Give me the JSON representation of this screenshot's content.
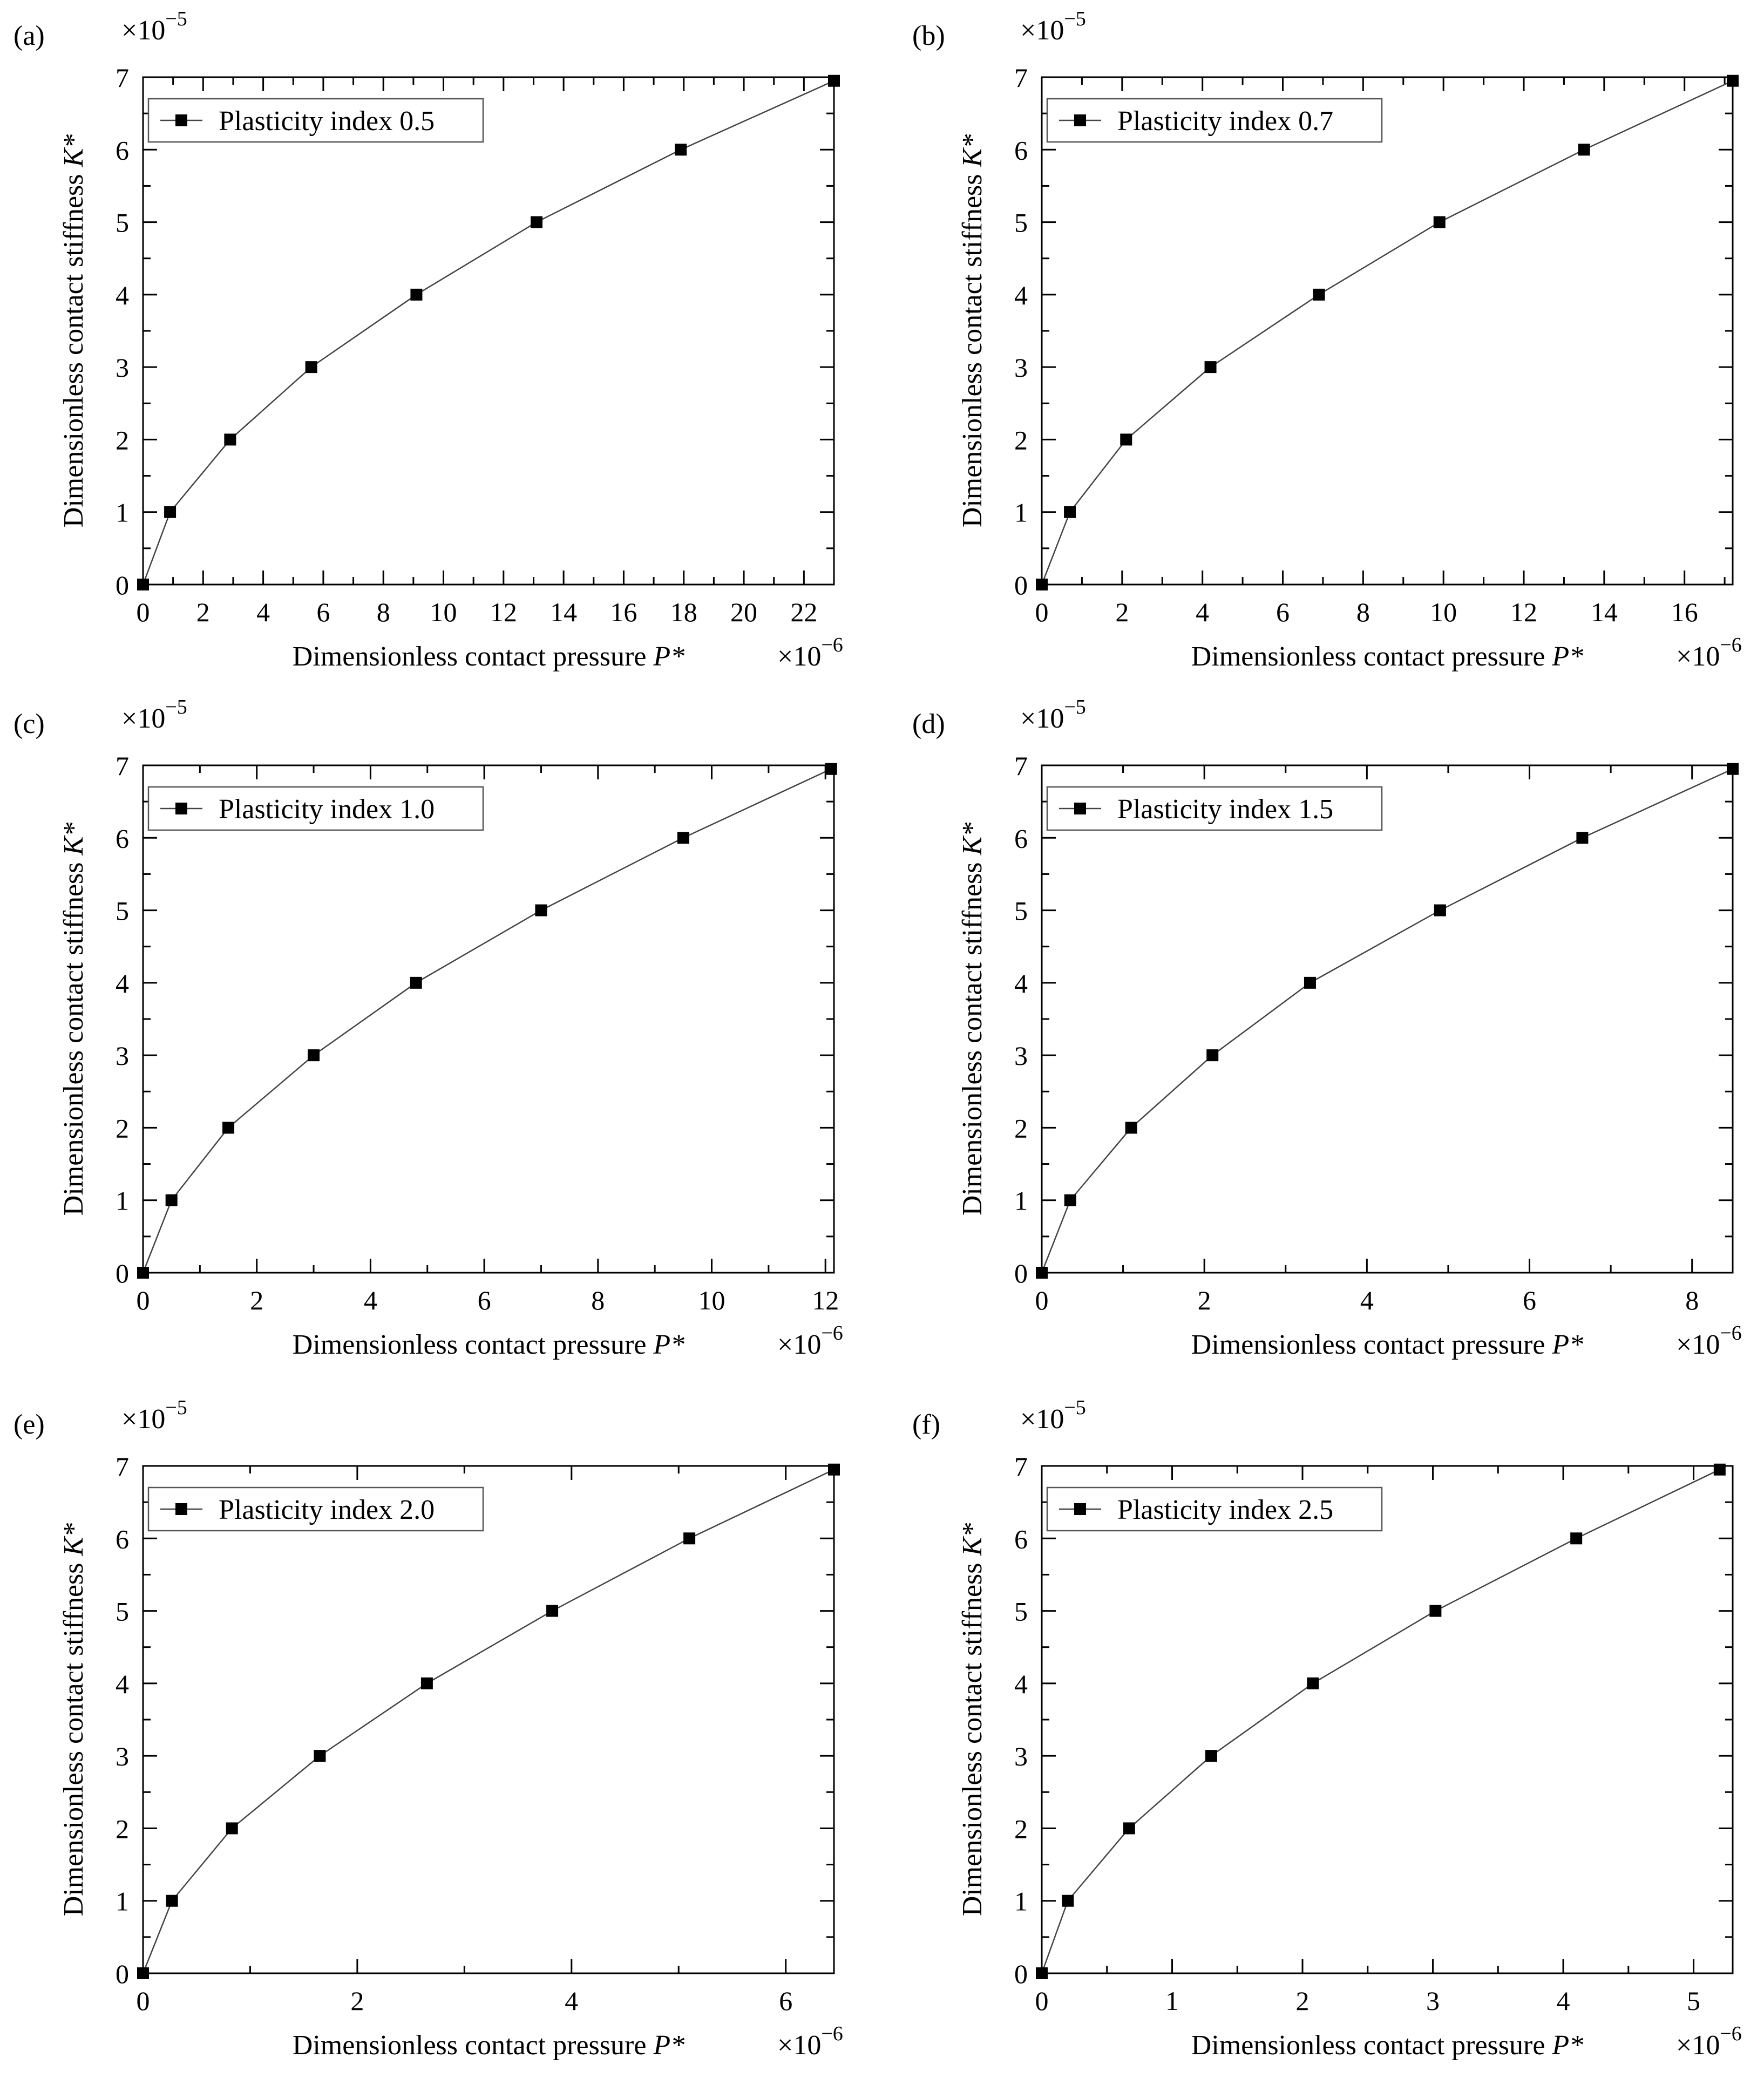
{
  "chart_data": [
    {
      "panel_label": "(a)",
      "type": "line",
      "title": "",
      "xlabel": "Dimensionless contact pressure",
      "xlabel_var": "P*",
      "ylabel": "Dimensionless contact stiffness",
      "ylabel_var": "K*",
      "x_multiplier": "×10",
      "x_multiplier_exp": "−6",
      "y_multiplier": "×10",
      "y_multiplier_exp": "−5",
      "xlim": [
        0,
        23
      ],
      "ylim": [
        0,
        7
      ],
      "xticks": [
        0,
        2,
        4,
        6,
        8,
        10,
        12,
        14,
        16,
        18,
        20,
        22
      ],
      "yticks": [
        0,
        1,
        2,
        3,
        4,
        5,
        6,
        7
      ],
      "legend": "top-left",
      "series": [
        {
          "name": "Plasticity index 0.5",
          "x": [
            0,
            0.9,
            2.9,
            5.6,
            9.1,
            13.1,
            17.9,
            23.0
          ],
          "y": [
            0,
            1,
            2,
            3,
            4,
            5,
            6,
            6.95
          ]
        }
      ]
    },
    {
      "panel_label": "(b)",
      "type": "line",
      "title": "",
      "xlabel": "Dimensionless contact pressure",
      "xlabel_var": "P*",
      "ylabel": "Dimensionless contact stiffness",
      "ylabel_var": "K*",
      "x_multiplier": "×10",
      "x_multiplier_exp": "−6",
      "y_multiplier": "×10",
      "y_multiplier_exp": "−5",
      "xlim": [
        0,
        17.2
      ],
      "ylim": [
        0,
        7
      ],
      "xticks": [
        0,
        2,
        4,
        6,
        8,
        10,
        12,
        14,
        16
      ],
      "yticks": [
        0,
        1,
        2,
        3,
        4,
        5,
        6,
        7
      ],
      "legend": "top-left",
      "series": [
        {
          "name": "Plasticity index 0.7",
          "x": [
            0,
            0.7,
            2.1,
            4.2,
            6.9,
            9.9,
            13.5,
            17.2
          ],
          "y": [
            0,
            1,
            2,
            3,
            4,
            5,
            6,
            6.95
          ]
        }
      ]
    },
    {
      "panel_label": "(c)",
      "type": "line",
      "title": "",
      "xlabel": "Dimensionless contact pressure",
      "xlabel_var": "P*",
      "ylabel": "Dimensionless contact stiffness",
      "ylabel_var": "K*",
      "x_multiplier": "×10",
      "x_multiplier_exp": "−6",
      "y_multiplier": "×10",
      "y_multiplier_exp": "−5",
      "xlim": [
        0,
        12.15
      ],
      "ylim": [
        0,
        7
      ],
      "xticks": [
        0,
        2,
        4,
        6,
        8,
        10,
        12
      ],
      "yticks": [
        0,
        1,
        2,
        3,
        4,
        5,
        6,
        7
      ],
      "legend": "top-left",
      "series": [
        {
          "name": "Plasticity index 1.0",
          "x": [
            0,
            0.5,
            1.5,
            3.0,
            4.8,
            7.0,
            9.5,
            12.1
          ],
          "y": [
            0,
            1,
            2,
            3,
            4,
            5,
            6,
            6.95
          ]
        }
      ]
    },
    {
      "panel_label": "(d)",
      "type": "line",
      "title": "",
      "xlabel": "Dimensionless contact pressure",
      "xlabel_var": "P*",
      "ylabel": "Dimensionless contact stiffness",
      "ylabel_var": "K*",
      "x_multiplier": "×10",
      "x_multiplier_exp": "−6",
      "y_multiplier": "×10",
      "y_multiplier_exp": "−5",
      "xlim": [
        0,
        8.5
      ],
      "ylim": [
        0,
        7
      ],
      "xticks": [
        0,
        2,
        4,
        6,
        8
      ],
      "yticks": [
        0,
        1,
        2,
        3,
        4,
        5,
        6,
        7
      ],
      "legend": "top-left",
      "series": [
        {
          "name": "Plasticity index 1.5",
          "x": [
            0,
            0.35,
            1.1,
            2.1,
            3.3,
            4.9,
            6.65,
            8.5
          ],
          "y": [
            0,
            1,
            2,
            3,
            4,
            5,
            6,
            6.95
          ]
        }
      ]
    },
    {
      "panel_label": "(e)",
      "type": "line",
      "title": "",
      "xlabel": "Dimensionless contact pressure",
      "xlabel_var": "P*",
      "ylabel": "Dimensionless contact stiffness",
      "ylabel_var": "K*",
      "x_multiplier": "×10",
      "x_multiplier_exp": "−6",
      "y_multiplier": "×10",
      "y_multiplier_exp": "−5",
      "xlim": [
        0,
        6.45
      ],
      "ylim": [
        0,
        7
      ],
      "xticks": [
        0,
        2,
        4,
        6
      ],
      "yticks": [
        0,
        1,
        2,
        3,
        4,
        5,
        6,
        7
      ],
      "legend": "top-left",
      "series": [
        {
          "name": "Plasticity index 2.0",
          "x": [
            0,
            0.27,
            0.83,
            1.65,
            2.65,
            3.82,
            5.1,
            6.45
          ],
          "y": [
            0,
            1,
            2,
            3,
            4,
            5,
            6,
            6.95
          ]
        }
      ]
    },
    {
      "panel_label": "(f)",
      "type": "line",
      "title": "",
      "xlabel": "Dimensionless contact pressure",
      "xlabel_var": "P*",
      "ylabel": "Dimensionless contact stiffness",
      "ylabel_var": "K*",
      "x_multiplier": "×10",
      "x_multiplier_exp": "−6",
      "y_multiplier": "×10",
      "y_multiplier_exp": "−5",
      "xlim": [
        0,
        5.3
      ],
      "ylim": [
        0,
        7
      ],
      "xticks": [
        0,
        1,
        2,
        3,
        4,
        5
      ],
      "yticks": [
        0,
        1,
        2,
        3,
        4,
        5,
        6,
        7
      ],
      "legend": "top-left",
      "series": [
        {
          "name": "Plasticity index 2.5",
          "x": [
            0,
            0.2,
            0.67,
            1.3,
            2.08,
            3.02,
            4.1,
            5.2
          ],
          "y": [
            0,
            1,
            2,
            3,
            4,
            5,
            6,
            6.95
          ]
        }
      ]
    }
  ]
}
